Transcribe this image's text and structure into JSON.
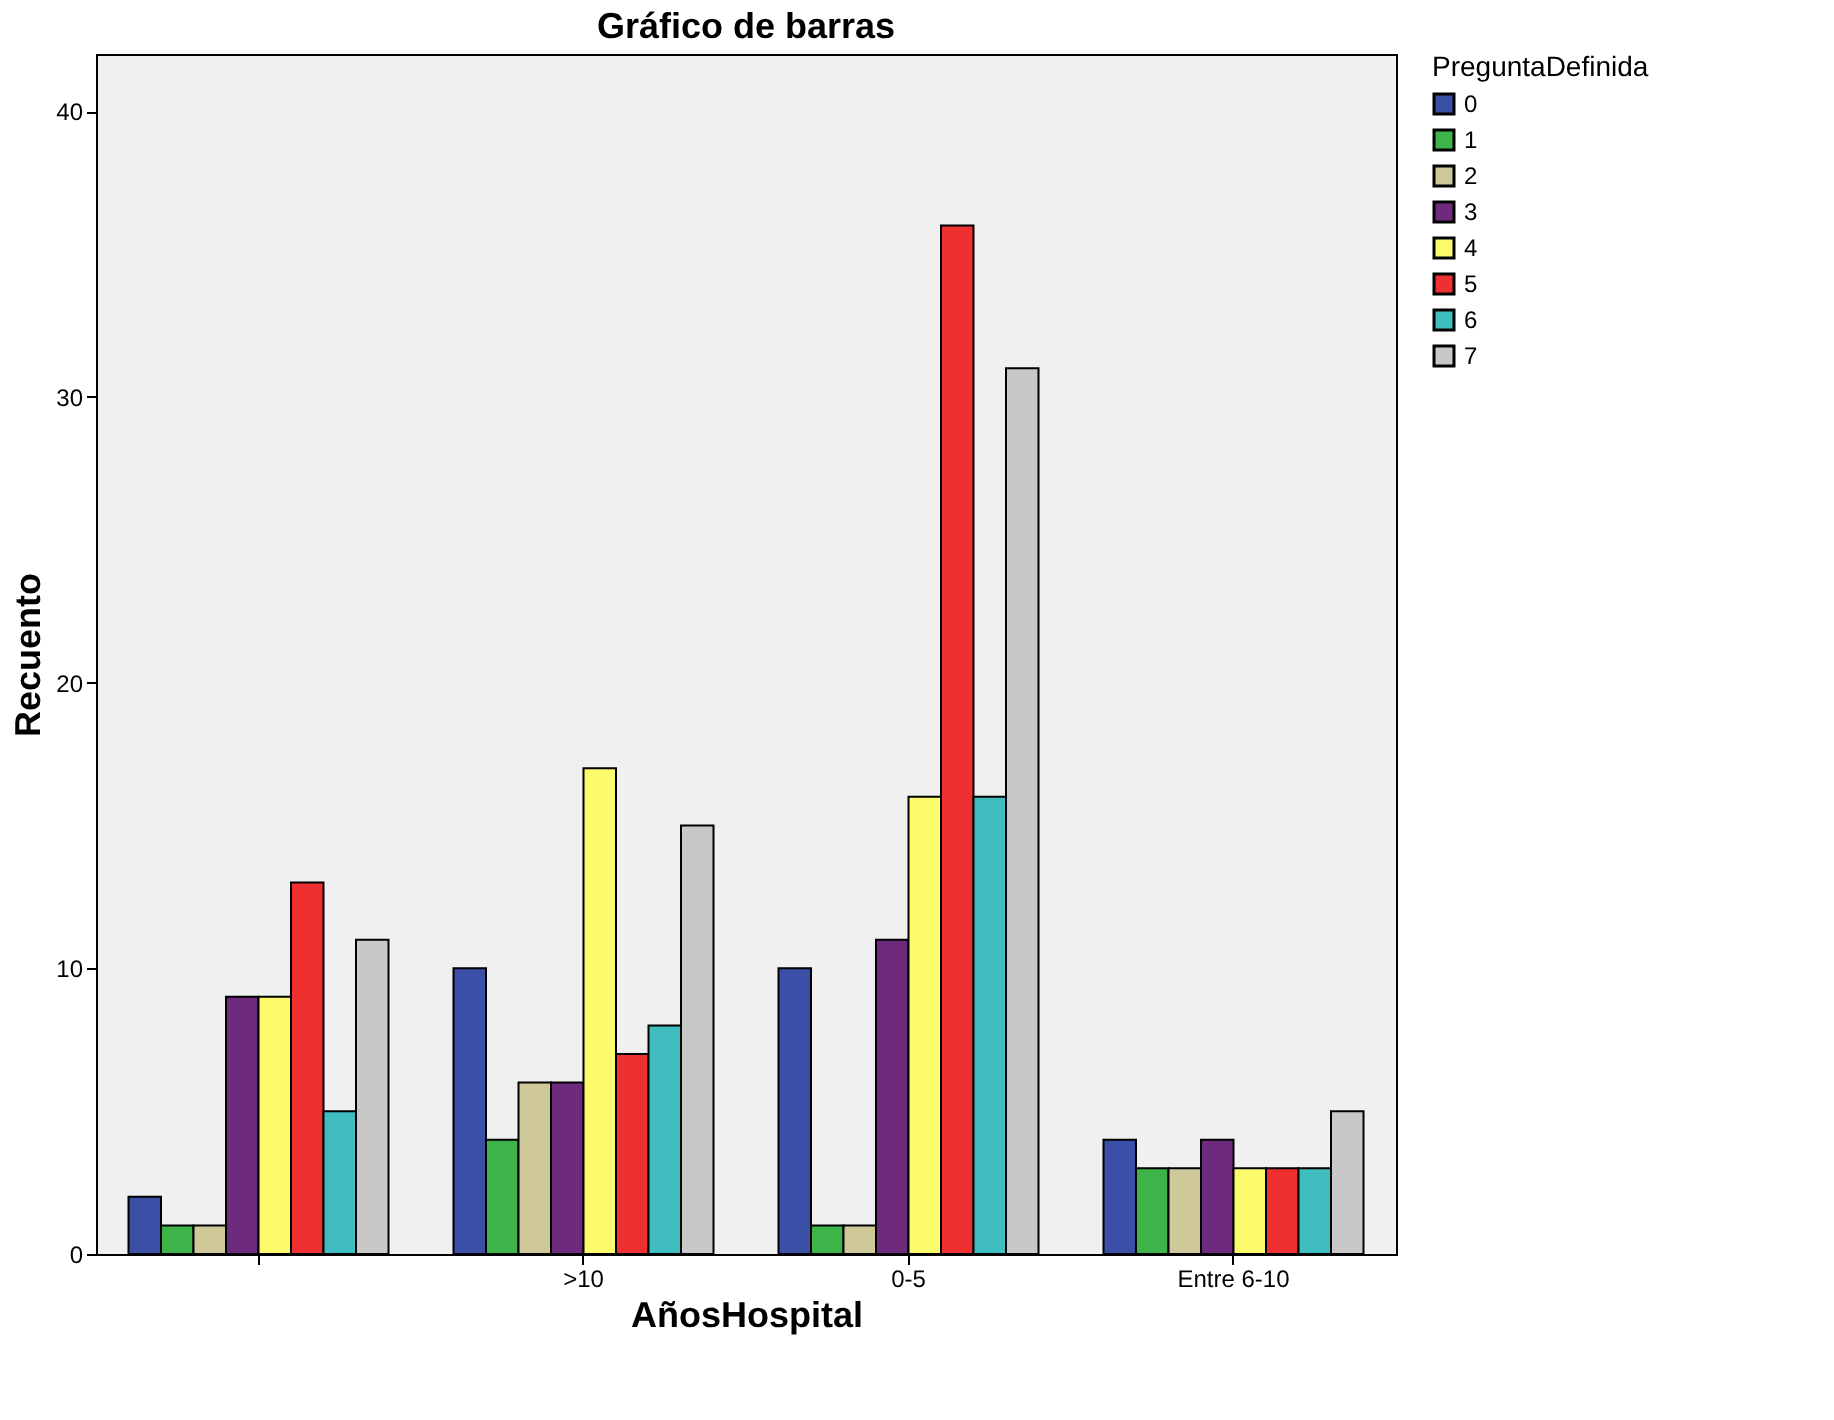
{
  "chart_data": {
    "type": "bar",
    "title": "Gráfico de barras",
    "xlabel": "AñosHospital",
    "ylabel": "Recuento",
    "legend_title": "PreguntaDefinida",
    "categories": [
      null,
      ">10",
      "0-5",
      "Entre 6-10"
    ],
    "series": [
      {
        "name": "0",
        "color": "#3a4fa5",
        "values": [
          2,
          10,
          10,
          4
        ]
      },
      {
        "name": "1",
        "color": "#3db34a",
        "values": [
          1,
          4,
          1,
          3
        ]
      },
      {
        "name": "2",
        "color": "#cfc99a",
        "values": [
          1,
          6,
          1,
          3
        ]
      },
      {
        "name": "3",
        "color": "#6e2a7d",
        "values": [
          9,
          6,
          11,
          4
        ]
      },
      {
        "name": "4",
        "color": "#fbfb6c",
        "values": [
          9,
          17,
          16,
          3
        ]
      },
      {
        "name": "5",
        "color": "#ee3030",
        "values": [
          13,
          7,
          36,
          3
        ]
      },
      {
        "name": "6",
        "color": "#3fbdbf",
        "values": [
          5,
          8,
          16,
          3
        ]
      },
      {
        "name": "7",
        "color": "#c8c8c8",
        "values": [
          11,
          15,
          31,
          5
        ]
      }
    ],
    "ylim": [
      0,
      42
    ],
    "yticks": [
      0,
      10,
      20,
      30,
      40
    ],
    "grid": false,
    "legend": "top right"
  }
}
